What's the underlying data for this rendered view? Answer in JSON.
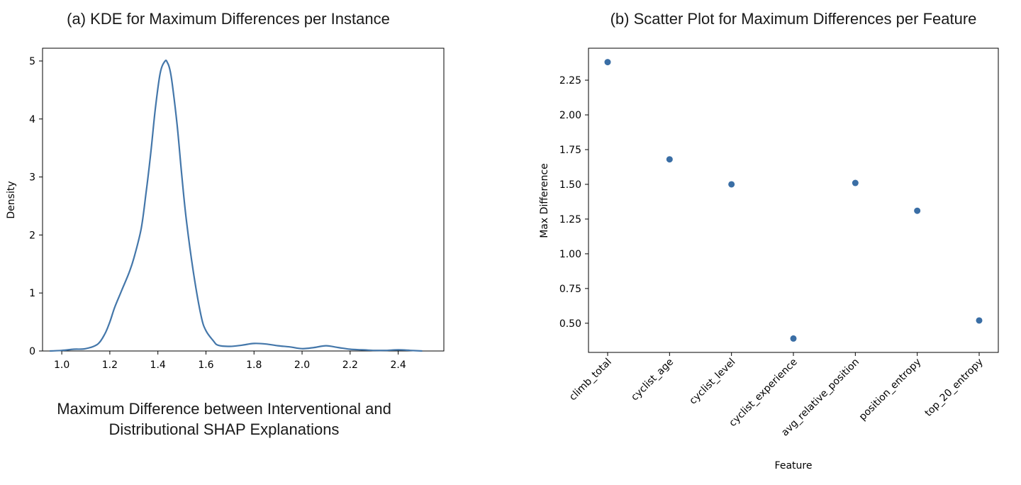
{
  "chart_data": [
    {
      "type": "line",
      "title": "(a) KDE for Maximum Differences per Instance",
      "xlabel_line1": "Maximum Difference between Interventional and",
      "xlabel_line2": "Distributional SHAP Explanations",
      "ylabel": "Density",
      "xlim": [
        0.92,
        2.59
      ],
      "ylim": [
        0,
        5.22
      ],
      "xticks": [
        "1.0",
        "1.2",
        "1.4",
        "1.6",
        "1.8",
        "2.0",
        "2.2",
        "2.4"
      ],
      "yticks": [
        "0",
        "1",
        "2",
        "3",
        "4",
        "5"
      ],
      "series_color": "#4477aa",
      "x": [
        0.95,
        1.0,
        1.05,
        1.1,
        1.15,
        1.18,
        1.2,
        1.22,
        1.25,
        1.28,
        1.3,
        1.33,
        1.35,
        1.37,
        1.39,
        1.41,
        1.43,
        1.44,
        1.45,
        1.46,
        1.48,
        1.5,
        1.52,
        1.55,
        1.58,
        1.6,
        1.63,
        1.65,
        1.7,
        1.75,
        1.8,
        1.85,
        1.9,
        1.95,
        2.0,
        2.05,
        2.1,
        2.15,
        2.2,
        2.25,
        2.3,
        2.35,
        2.4,
        2.45,
        2.5
      ],
      "y": [
        0.0,
        0.01,
        0.03,
        0.04,
        0.12,
        0.3,
        0.5,
        0.75,
        1.05,
        1.35,
        1.6,
        2.1,
        2.7,
        3.4,
        4.2,
        4.8,
        5.0,
        4.97,
        4.85,
        4.6,
        3.9,
        3.0,
        2.2,
        1.3,
        0.6,
        0.35,
        0.18,
        0.1,
        0.08,
        0.1,
        0.13,
        0.12,
        0.09,
        0.07,
        0.04,
        0.06,
        0.09,
        0.06,
        0.03,
        0.02,
        0.01,
        0.01,
        0.02,
        0.01,
        0.0
      ]
    },
    {
      "type": "scatter",
      "title": "(b) Scatter Plot for Maximum Differences per Feature",
      "xlabel": "Feature",
      "ylabel": "Max Difference",
      "categories": [
        "climb_total",
        "cyclist_age",
        "cyclist_level",
        "cyclist_experience",
        "avg_relative_position",
        "position_entropy",
        "top_20_entropy"
      ],
      "values": [
        2.38,
        1.68,
        1.5,
        0.39,
        1.51,
        1.31,
        0.52
      ],
      "ylim": [
        0.29,
        2.48
      ],
      "yticks": [
        "0.50",
        "0.75",
        "1.00",
        "1.25",
        "1.50",
        "1.75",
        "2.00",
        "2.25"
      ],
      "series_color": "#3a6ea5"
    }
  ]
}
